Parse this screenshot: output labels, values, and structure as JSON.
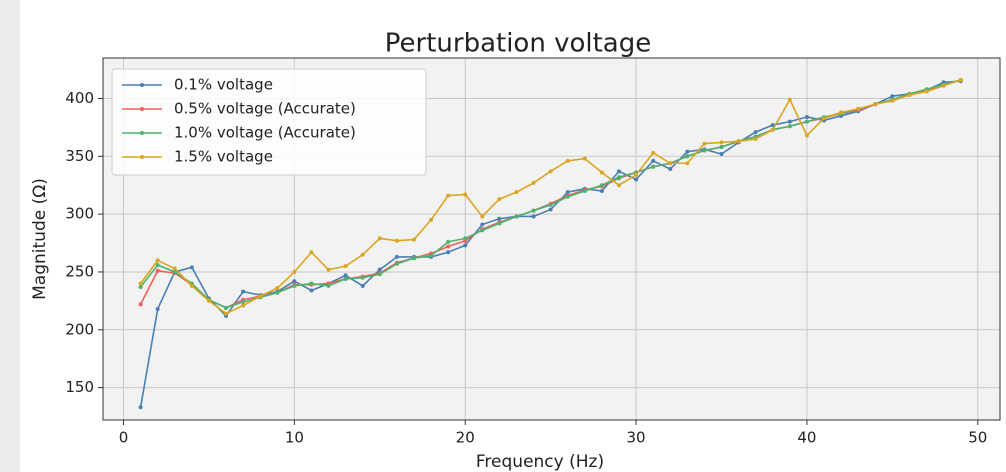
{
  "chart_data": {
    "type": "line",
    "title": "Perturbation voltage",
    "xlabel": "Frequency (Hz)",
    "ylabel": "Magnitude (Ω)",
    "x": [
      1,
      2,
      3,
      4,
      5,
      6,
      7,
      8,
      9,
      10,
      11,
      12,
      13,
      14,
      15,
      16,
      17,
      18,
      19,
      20,
      21,
      22,
      23,
      24,
      25,
      26,
      27,
      28,
      29,
      30,
      31,
      32,
      33,
      34,
      35,
      36,
      37,
      38,
      39,
      40,
      41,
      42,
      43,
      44,
      45,
      46,
      47,
      48,
      49
    ],
    "series": [
      {
        "name": "0.1% voltage",
        "color": "#4a7fb5",
        "values": [
          133,
          218,
          250,
          254,
          227,
          212,
          233,
          230,
          233,
          242,
          234,
          240,
          247,
          238,
          252,
          263,
          263,
          263,
          267,
          273,
          291,
          296,
          298,
          298,
          304,
          319,
          322,
          320,
          337,
          330,
          346,
          339,
          354,
          356,
          352,
          362,
          371,
          377,
          380,
          384,
          381,
          385,
          389,
          395,
          402,
          404,
          407,
          414,
          415
        ]
      },
      {
        "name": "0.5% voltage (Accurate)",
        "color": "#f0605a",
        "values": [
          222,
          251,
          249,
          239,
          226,
          219,
          226,
          229,
          232,
          239,
          239,
          240,
          244,
          246,
          249,
          258,
          262,
          266,
          272,
          277,
          287,
          293,
          298,
          303,
          309,
          316,
          321,
          324,
          331,
          336,
          341,
          344,
          350,
          355,
          358,
          363,
          367,
          373,
          376,
          380,
          383,
          387,
          390,
          395,
          399,
          403,
          407,
          412,
          416
        ]
      },
      {
        "name": "1.0% voltage (Accurate)",
        "color": "#4cb36e",
        "values": [
          237,
          256,
          250,
          240,
          226,
          219,
          224,
          228,
          232,
          238,
          240,
          238,
          244,
          245,
          248,
          257,
          262,
          264,
          276,
          279,
          286,
          292,
          298,
          303,
          308,
          315,
          320,
          325,
          332,
          336,
          341,
          344,
          350,
          355,
          358,
          363,
          367,
          373,
          376,
          380,
          384,
          387,
          391,
          395,
          399,
          404,
          408,
          412,
          416
        ]
      },
      {
        "name": "1.5% voltage",
        "color": "#daa520",
        "values": [
          240,
          260,
          253,
          238,
          225,
          214,
          221,
          229,
          236,
          250,
          267,
          252,
          255,
          265,
          279,
          277,
          278,
          295,
          316,
          317,
          298,
          313,
          319,
          327,
          337,
          346,
          348,
          336,
          325,
          334,
          353,
          344,
          344,
          361,
          362,
          363,
          365,
          373,
          399,
          368,
          383,
          388,
          391,
          395,
          398,
          403,
          406,
          411,
          416
        ]
      }
    ],
    "xlim": [
      -1.2,
      51.3
    ],
    "ylim": [
      122,
      435
    ],
    "xticks": [
      0,
      10,
      20,
      30,
      40,
      50
    ],
    "yticks": [
      150,
      200,
      250,
      300,
      350,
      400
    ],
    "grid": true,
    "legend": "upper left"
  }
}
